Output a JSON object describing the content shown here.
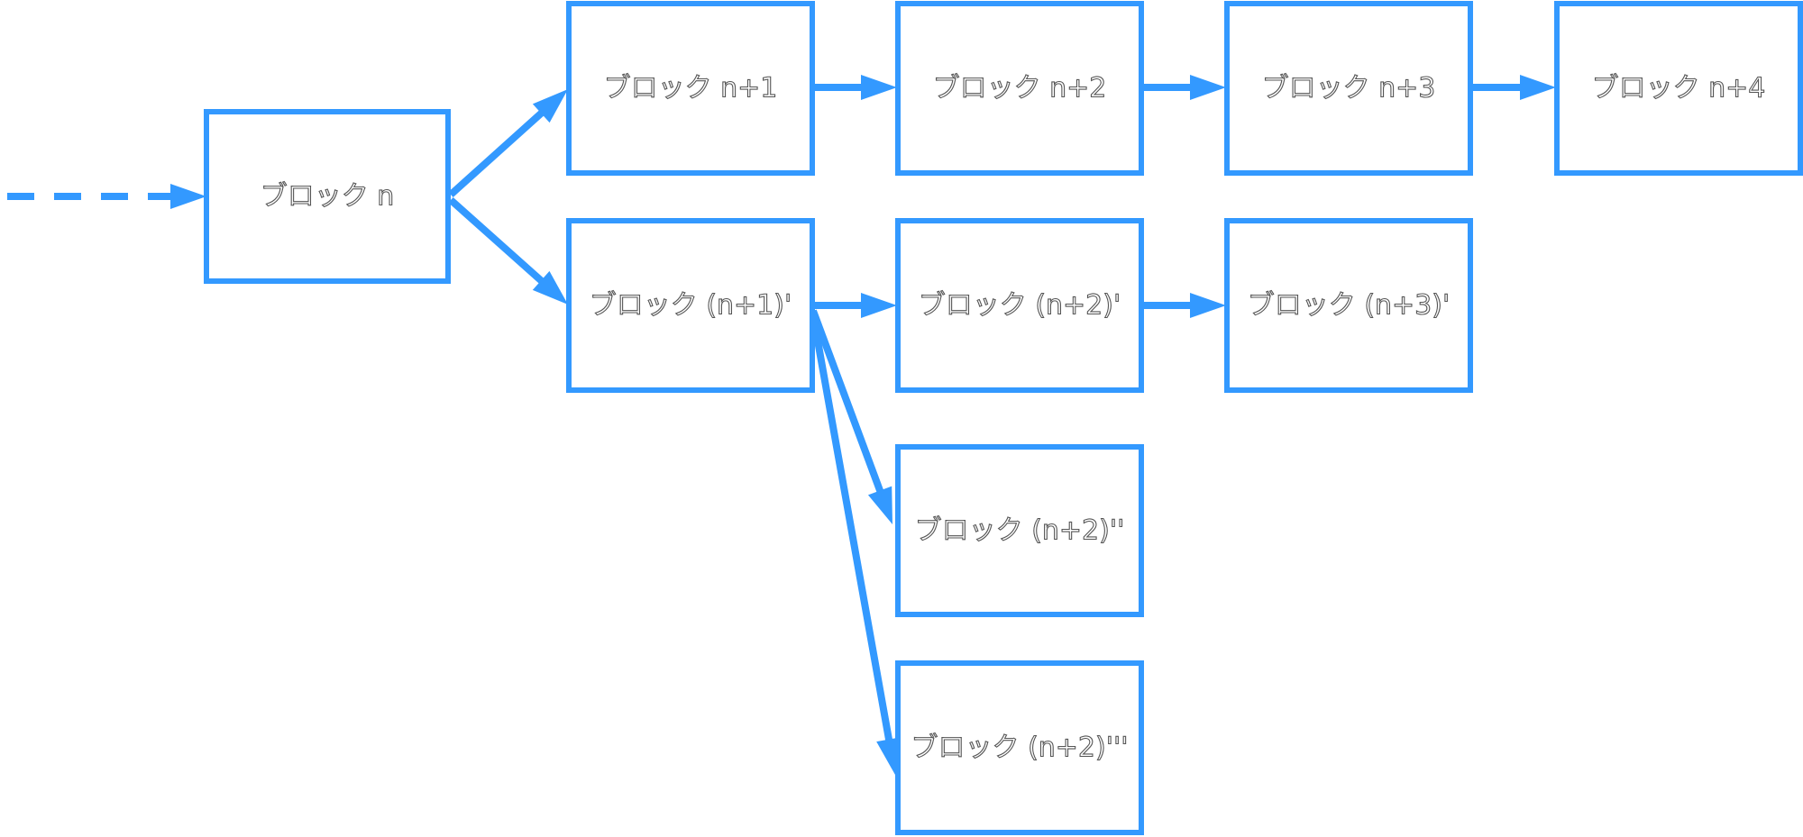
{
  "diagram": {
    "accent_color": "#3399ff",
    "blocks": [
      {
        "id": "n",
        "label": "ブロック n"
      },
      {
        "id": "n1",
        "label": "ブロック n+1"
      },
      {
        "id": "n2",
        "label": "ブロック n+2"
      },
      {
        "id": "n3",
        "label": "ブロック n+3"
      },
      {
        "id": "n4",
        "label": "ブロック n+4"
      },
      {
        "id": "n1p",
        "label": "ブロック (n+1)'"
      },
      {
        "id": "n2p",
        "label": "ブロック (n+2)'"
      },
      {
        "id": "n3p",
        "label": "ブロック (n+3)'"
      },
      {
        "id": "n2pp",
        "label": "ブロック (n+2)''"
      },
      {
        "id": "n2ppp",
        "label": "ブロック (n+2)'''"
      }
    ],
    "edges": [
      {
        "from": "incoming",
        "to": "n",
        "style": "dashed"
      },
      {
        "from": "n",
        "to": "n1",
        "style": "solid"
      },
      {
        "from": "n",
        "to": "n1p",
        "style": "solid"
      },
      {
        "from": "n1",
        "to": "n2",
        "style": "solid"
      },
      {
        "from": "n2",
        "to": "n3",
        "style": "solid"
      },
      {
        "from": "n3",
        "to": "n4",
        "style": "solid"
      },
      {
        "from": "n1p",
        "to": "n2p",
        "style": "solid"
      },
      {
        "from": "n2p",
        "to": "n3p",
        "style": "solid"
      },
      {
        "from": "n1p",
        "to": "n2pp",
        "style": "solid"
      },
      {
        "from": "n1p",
        "to": "n2ppp",
        "style": "solid"
      }
    ]
  }
}
